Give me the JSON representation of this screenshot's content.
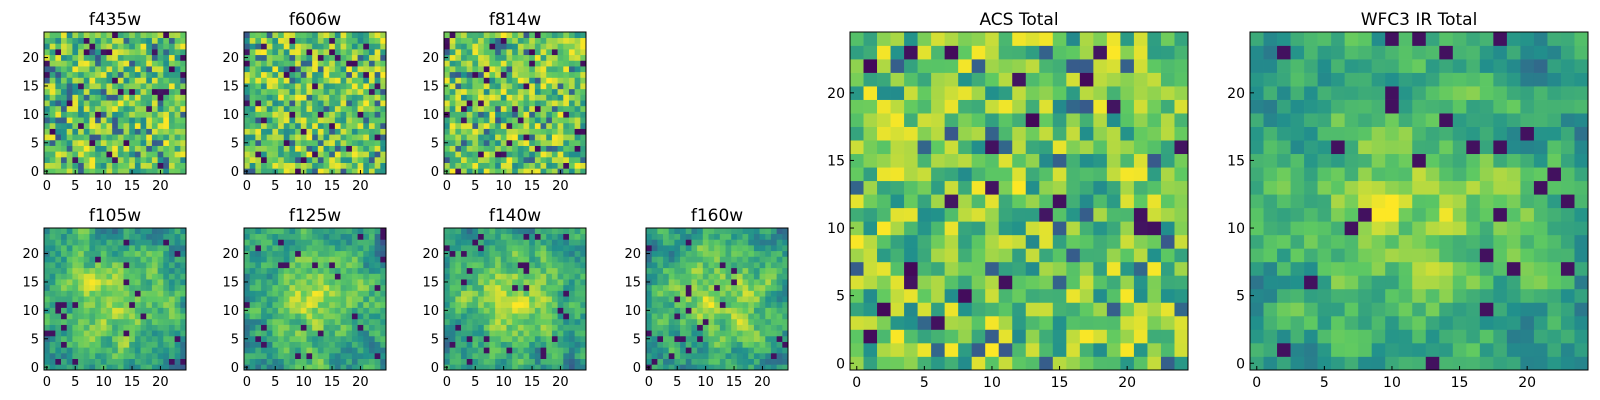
{
  "chart_data": [
    {
      "type": "heatmap",
      "title": "f435w",
      "seed": 11,
      "pattern": "noise",
      "xlim": [
        0,
        25
      ],
      "ylim": [
        0,
        25
      ],
      "xticks": [
        0,
        5,
        10,
        15,
        20
      ],
      "yticks": [
        0,
        5,
        10,
        15,
        20
      ]
    },
    {
      "type": "heatmap",
      "title": "f606w",
      "seed": 23,
      "pattern": "noise",
      "xlim": [
        0,
        25
      ],
      "ylim": [
        0,
        25
      ],
      "xticks": [
        0,
        5,
        10,
        15,
        20
      ],
      "yticks": [
        0,
        5,
        10,
        15,
        20
      ]
    },
    {
      "type": "heatmap",
      "title": "f814w",
      "seed": 37,
      "pattern": "noise",
      "xlim": [
        0,
        25
      ],
      "ylim": [
        0,
        25
      ],
      "xticks": [
        0,
        5,
        10,
        15,
        20
      ],
      "yticks": [
        0,
        5,
        10,
        15,
        20
      ]
    },
    {
      "type": "heatmap",
      "title": "f105w",
      "seed": 41,
      "pattern": "blob",
      "xlim": [
        0,
        25
      ],
      "ylim": [
        0,
        25
      ],
      "xticks": [
        0,
        5,
        10,
        15,
        20
      ],
      "yticks": [
        0,
        5,
        10,
        15,
        20
      ]
    },
    {
      "type": "heatmap",
      "title": "f125w",
      "seed": 53,
      "pattern": "blob",
      "xlim": [
        0,
        25
      ],
      "ylim": [
        0,
        25
      ],
      "xticks": [
        0,
        5,
        10,
        15,
        20
      ],
      "yticks": [
        0,
        5,
        10,
        15,
        20
      ]
    },
    {
      "type": "heatmap",
      "title": "f140w",
      "seed": 67,
      "pattern": "blob",
      "xlim": [
        0,
        25
      ],
      "ylim": [
        0,
        25
      ],
      "xticks": [
        0,
        5,
        10,
        15,
        20
      ],
      "yticks": [
        0,
        5,
        10,
        15,
        20
      ]
    },
    {
      "type": "heatmap",
      "title": "f160w",
      "seed": 79,
      "pattern": "blob",
      "xlim": [
        0,
        25
      ],
      "ylim": [
        0,
        25
      ],
      "xticks": [
        0,
        5,
        10,
        15,
        20
      ],
      "yticks": [
        0,
        5,
        10,
        15,
        20
      ]
    },
    {
      "type": "heatmap",
      "title": "ACS Total",
      "seed": 83,
      "pattern": "noise",
      "xlim": [
        0,
        25
      ],
      "ylim": [
        0,
        25
      ],
      "xticks": [
        0,
        5,
        10,
        15,
        20
      ],
      "yticks": [
        0,
        5,
        10,
        15,
        20
      ]
    },
    {
      "type": "heatmap",
      "title": "WFC3 IR Total",
      "seed": 97,
      "pattern": "blob",
      "xlim": [
        0,
        25
      ],
      "ylim": [
        0,
        25
      ],
      "xticks": [
        0,
        5,
        10,
        15,
        20
      ],
      "yticks": [
        0,
        5,
        10,
        15,
        20
      ]
    }
  ],
  "colormap": [
    "#440154",
    "#3b528b",
    "#21918c",
    "#5ec962",
    "#fde725"
  ],
  "grid_size": 25
}
